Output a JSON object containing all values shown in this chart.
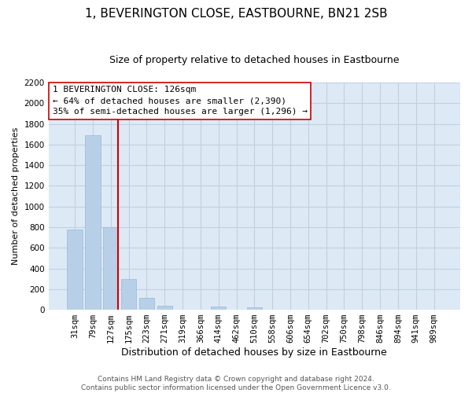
{
  "title": "1, BEVERINGTON CLOSE, EASTBOURNE, BN21 2SB",
  "subtitle": "Size of property relative to detached houses in Eastbourne",
  "xlabel": "Distribution of detached houses by size in Eastbourne",
  "ylabel": "Number of detached properties",
  "bar_labels": [
    "31sqm",
    "79sqm",
    "127sqm",
    "175sqm",
    "223sqm",
    "271sqm",
    "319sqm",
    "366sqm",
    "414sqm",
    "462sqm",
    "510sqm",
    "558sqm",
    "606sqm",
    "654sqm",
    "702sqm",
    "750sqm",
    "798sqm",
    "846sqm",
    "894sqm",
    "941sqm",
    "989sqm"
  ],
  "bar_values": [
    780,
    1690,
    800,
    295,
    115,
    35,
    0,
    0,
    30,
    0,
    20,
    0,
    0,
    0,
    0,
    0,
    0,
    0,
    0,
    0,
    0
  ],
  "bar_color": "#b8cfe8",
  "bar_edgecolor": "#9ab8d8",
  "vline_color": "#cc0000",
  "vline_x": 2.425,
  "annotation_text_line1": "1 BEVERINGTON CLOSE: 126sqm",
  "annotation_text_line2": "← 64% of detached houses are smaller (2,390)",
  "annotation_text_line3": "35% of semi-detached houses are larger (1,296) →",
  "ylim": [
    0,
    2200
  ],
  "yticks": [
    0,
    200,
    400,
    600,
    800,
    1000,
    1200,
    1400,
    1600,
    1800,
    2000,
    2200
  ],
  "grid_color": "#c0d0e0",
  "background_color": "#ddeaf6",
  "footer_text": "Contains HM Land Registry data © Crown copyright and database right 2024.\nContains public sector information licensed under the Open Government Licence v3.0.",
  "title_fontsize": 11,
  "subtitle_fontsize": 9,
  "xlabel_fontsize": 9,
  "ylabel_fontsize": 8,
  "tick_fontsize": 7.5,
  "annotation_fontsize": 8,
  "footer_fontsize": 6.5
}
